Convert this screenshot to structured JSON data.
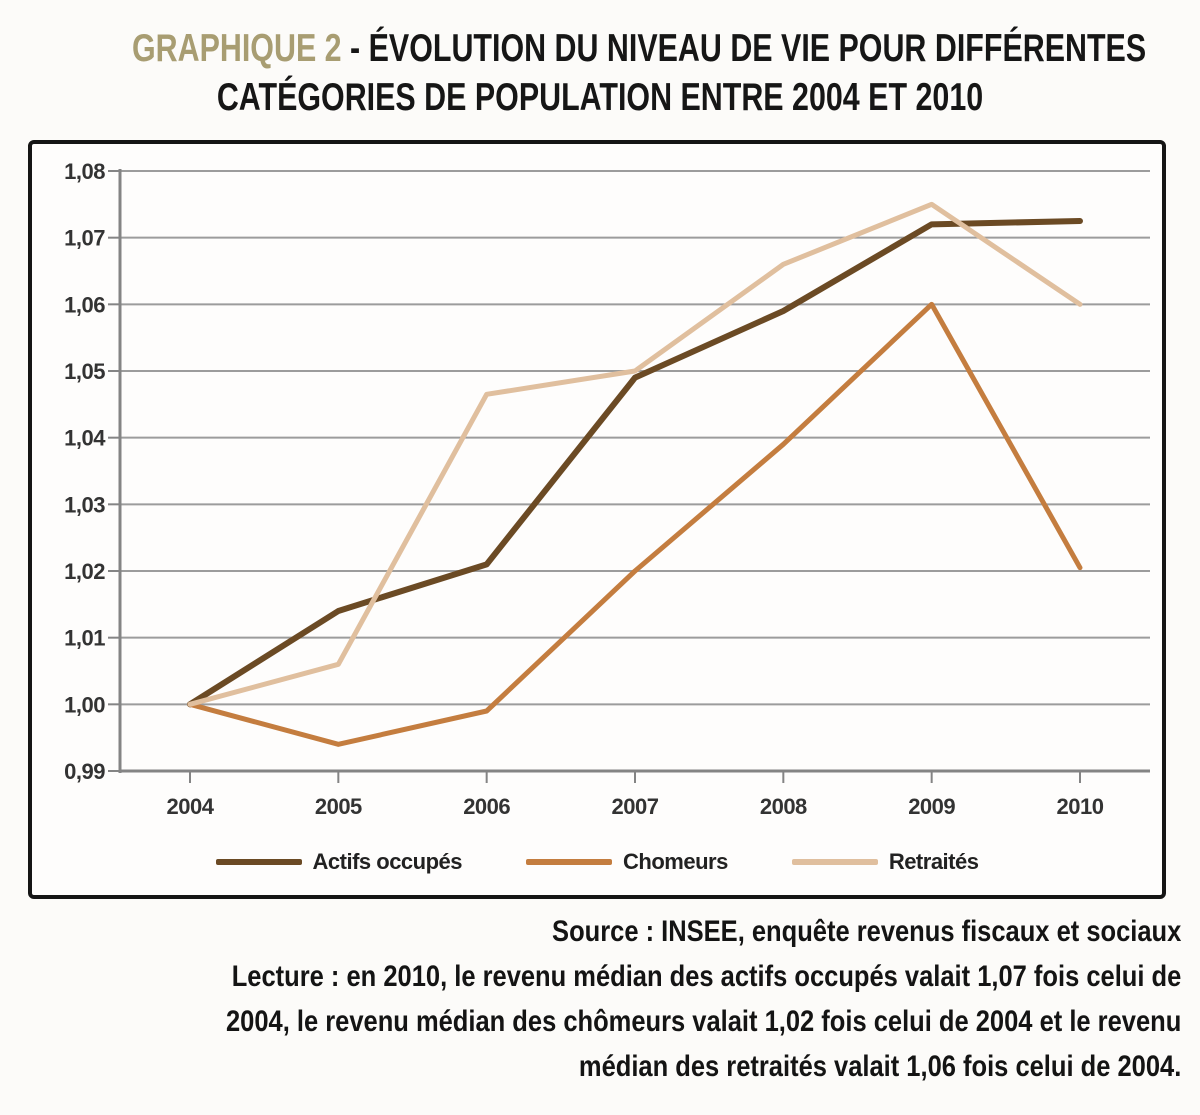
{
  "title": {
    "accent": "GRAPHIQUE 2",
    "line1_rest": "- ÉVOLUTION DU NIVEAU DE VIE POUR DIFFÉRENTES",
    "line2": "CATÉGORIES DE POPULATION ENTRE 2004 ET 2010"
  },
  "colors": {
    "title_accent": "#a89d72",
    "title_text": "#161616",
    "grid": "#9c9c9c",
    "axis": "#848484",
    "tick_label": "#333333",
    "frame_border": "#151515"
  },
  "chart_data": {
    "type": "line",
    "title": "GRAPHIQUE 2 - ÉVOLUTION DU NIVEAU DE VIE POUR DIFFÉRENTES CATÉGORIES DE POPULATION ENTRE 2004 ET 2010",
    "x": [
      "2004",
      "2005",
      "2006",
      "2007",
      "2008",
      "2009",
      "2010"
    ],
    "series": [
      {
        "name": "Actifs occupés",
        "color": "#6b4a24",
        "values": [
          1.0,
          1.014,
          1.021,
          1.049,
          1.059,
          1.072,
          1.0725
        ]
      },
      {
        "name": "Chomeurs",
        "color": "#c47d3f",
        "values": [
          1.0,
          0.994,
          0.999,
          1.02,
          1.039,
          1.06,
          1.0205
        ]
      },
      {
        "name": "Retraités",
        "color": "#e0bf9e",
        "values": [
          1.0,
          1.006,
          1.0465,
          1.05,
          1.066,
          1.075,
          1.06
        ]
      }
    ],
    "ylim": [
      0.99,
      1.08
    ],
    "ytick_labels": [
      "0,99",
      "1,00",
      "1,01",
      "1,02",
      "1,03",
      "1,04",
      "1,05",
      "1,06",
      "1,07",
      "1,08"
    ],
    "grid": true,
    "legend_position": "bottom"
  },
  "caption": {
    "source": "Source : INSEE, enquête revenus fiscaux et sociaux",
    "lecture_line1": "Lecture : en 2010, le revenu médian des actifs occupés valait 1,07 fois celui de",
    "lecture_line2": "2004, le revenu médian des chômeurs valait 1,02 fois celui de 2004 et le revenu",
    "lecture_line3": "médian des retraités valait 1,06 fois celui de 2004."
  }
}
